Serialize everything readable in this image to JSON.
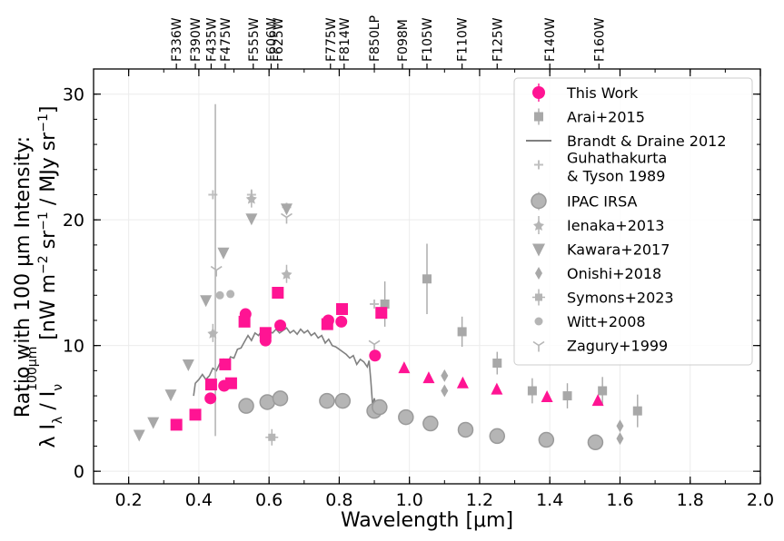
{
  "chart_data": {
    "type": "scatter",
    "xlabel": "Wavelength [μm]",
    "ylabel_line1": "Ratio with 100 μm Intensity:",
    "ylabel_line2": "λ I_λ / I_ν^100μm [nW m^−2 sr^−1 / MJy sr^−1]",
    "xlim": [
      0.1,
      2.0
    ],
    "ylim": [
      -1,
      32
    ],
    "xticks": [
      "0.2",
      "0.4",
      "0.6",
      "0.8",
      "1.0",
      "1.2",
      "1.4",
      "1.6",
      "1.8",
      "2.0"
    ],
    "yticks": [
      "0",
      "10",
      "20",
      "30"
    ],
    "grid": true,
    "legend_position": "top-right",
    "top_axis_filters": [
      {
        "name": "F336W",
        "x": 0.336
      },
      {
        "name": "F390W",
        "x": 0.39
      },
      {
        "name": "F435W",
        "x": 0.435
      },
      {
        "name": "F475W",
        "x": 0.475
      },
      {
        "name": "F555W",
        "x": 0.555
      },
      {
        "name": "F606W",
        "x": 0.606
      },
      {
        "name": "F625W",
        "x": 0.625
      },
      {
        "name": "F775W",
        "x": 0.775
      },
      {
        "name": "F814W",
        "x": 0.814
      },
      {
        "name": "F850LP",
        "x": 0.9
      },
      {
        "name": "F098M",
        "x": 0.98
      },
      {
        "name": "F105W",
        "x": 1.05
      },
      {
        "name": "F110W",
        "x": 1.15
      },
      {
        "name": "F125W",
        "x": 1.25
      },
      {
        "name": "F140W",
        "x": 1.4
      },
      {
        "name": "F160W",
        "x": 1.54
      }
    ],
    "series": [
      {
        "name": "This Work",
        "color": "#ff1493",
        "marker": "circle",
        "legend_marker": "circle",
        "points": [
          {
            "x": 0.433,
            "y": 5.8,
            "m": "circle"
          },
          {
            "x": 0.472,
            "y": 6.8,
            "m": "circle"
          },
          {
            "x": 0.533,
            "y": 12.5,
            "m": "circle"
          },
          {
            "x": 0.59,
            "y": 10.4,
            "m": "circle"
          },
          {
            "x": 0.632,
            "y": 11.6,
            "m": "circle"
          },
          {
            "x": 0.769,
            "y": 12.0,
            "m": "circle"
          },
          {
            "x": 0.806,
            "y": 11.9,
            "m": "circle"
          },
          {
            "x": 0.902,
            "y": 9.2,
            "m": "circle"
          },
          {
            "x": 0.336,
            "y": 3.7,
            "m": "square"
          },
          {
            "x": 0.39,
            "y": 4.5,
            "m": "square"
          },
          {
            "x": 0.435,
            "y": 6.9,
            "m": "square"
          },
          {
            "x": 0.475,
            "y": 8.5,
            "m": "square"
          },
          {
            "x": 0.492,
            "y": 7.0,
            "m": "square"
          },
          {
            "x": 0.53,
            "y": 11.9,
            "m": "square"
          },
          {
            "x": 0.59,
            "y": 11.0,
            "m": "square"
          },
          {
            "x": 0.625,
            "y": 14.2,
            "m": "square"
          },
          {
            "x": 0.766,
            "y": 11.7,
            "m": "square"
          },
          {
            "x": 0.808,
            "y": 12.9,
            "m": "square"
          },
          {
            "x": 0.92,
            "y": 12.6,
            "m": "square"
          },
          {
            "x": 0.985,
            "y": 8.2,
            "m": "triangle"
          },
          {
            "x": 1.055,
            "y": 7.4,
            "m": "triangle"
          },
          {
            "x": 1.152,
            "y": 7.0,
            "m": "triangle"
          },
          {
            "x": 1.249,
            "y": 6.5,
            "m": "triangle"
          },
          {
            "x": 1.392,
            "y": 5.9,
            "m": "triangle"
          },
          {
            "x": 1.537,
            "y": 5.6,
            "m": "triangle"
          }
        ]
      },
      {
        "name": "Arai+2015",
        "color": "#a8a8a8",
        "marker": "square",
        "points": [
          {
            "x": 0.93,
            "y": 13.3,
            "err": 1.8
          },
          {
            "x": 1.05,
            "y": 15.3,
            "err": 2.8
          },
          {
            "x": 1.15,
            "y": 11.1,
            "err": 1.2
          },
          {
            "x": 1.25,
            "y": 8.6,
            "err": 0.9
          },
          {
            "x": 1.35,
            "y": 6.4,
            "err": 1.0
          },
          {
            "x": 1.45,
            "y": 6.0,
            "err": 1.0
          },
          {
            "x": 1.55,
            "y": 6.4,
            "err": 1.1
          },
          {
            "x": 1.65,
            "y": 4.8,
            "err": 1.3
          }
        ]
      },
      {
        "name": "Brandt & Draine 2012",
        "color": "#808080",
        "marker": "line",
        "line": [
          [
            0.385,
            6.0
          ],
          [
            0.39,
            7.0
          ],
          [
            0.4,
            7.3
          ],
          [
            0.41,
            7.7
          ],
          [
            0.42,
            7.3
          ],
          [
            0.43,
            7.6
          ],
          [
            0.44,
            8.2
          ],
          [
            0.45,
            8.0
          ],
          [
            0.46,
            8.6
          ],
          [
            0.47,
            8.9
          ],
          [
            0.48,
            8.4
          ],
          [
            0.49,
            9.1
          ],
          [
            0.5,
            9.0
          ],
          [
            0.51,
            9.7
          ],
          [
            0.52,
            9.8
          ],
          [
            0.53,
            10.3
          ],
          [
            0.54,
            10.8
          ],
          [
            0.55,
            10.4
          ],
          [
            0.56,
            11.0
          ],
          [
            0.57,
            10.8
          ],
          [
            0.58,
            11.2
          ],
          [
            0.59,
            10.8
          ],
          [
            0.6,
            11.1
          ],
          [
            0.61,
            11.0
          ],
          [
            0.62,
            11.3
          ],
          [
            0.63,
            11.0
          ],
          [
            0.64,
            11.2
          ],
          [
            0.65,
            11.4
          ],
          [
            0.66,
            11.0
          ],
          [
            0.67,
            11.2
          ],
          [
            0.68,
            10.9
          ],
          [
            0.69,
            11.3
          ],
          [
            0.7,
            11.0
          ],
          [
            0.71,
            11.2
          ],
          [
            0.72,
            10.8
          ],
          [
            0.73,
            11.0
          ],
          [
            0.74,
            10.6
          ],
          [
            0.75,
            10.8
          ],
          [
            0.76,
            10.2
          ],
          [
            0.77,
            10.5
          ],
          [
            0.78,
            10.0
          ],
          [
            0.79,
            9.9
          ],
          [
            0.8,
            9.7
          ],
          [
            0.81,
            9.5
          ],
          [
            0.82,
            9.3
          ],
          [
            0.83,
            9.0
          ],
          [
            0.84,
            9.2
          ],
          [
            0.85,
            8.5
          ],
          [
            0.86,
            8.9
          ],
          [
            0.87,
            8.7
          ],
          [
            0.88,
            8.3
          ],
          [
            0.885,
            8.8
          ],
          [
            0.89,
            7.2
          ],
          [
            0.895,
            5.3
          ],
          [
            0.9,
            5.8
          ],
          [
            0.905,
            5.1
          ],
          [
            0.91,
            5.2
          ]
        ]
      },
      {
        "name": "Guhathakurta & Tyson 1989",
        "name_line1": "Guhathakurta",
        "name_line2": "& Tyson 1989",
        "color": "#c0c0c0",
        "marker": "plus",
        "points": [
          {
            "x": 0.44,
            "y": 22.0
          },
          {
            "x": 0.55,
            "y": 22.0
          },
          {
            "x": 0.65,
            "y": 21.0
          },
          {
            "x": 0.9,
            "y": 13.3
          }
        ]
      },
      {
        "name": "IPAC IRSA",
        "color": "#b5b5b5",
        "marker": "big-circle",
        "points": [
          {
            "x": 0.535,
            "y": 5.2
          },
          {
            "x": 0.595,
            "y": 5.5
          },
          {
            "x": 0.632,
            "y": 5.8
          },
          {
            "x": 0.765,
            "y": 5.6
          },
          {
            "x": 0.81,
            "y": 5.6
          },
          {
            "x": 0.9,
            "y": 4.8
          },
          {
            "x": 0.915,
            "y": 5.1
          },
          {
            "x": 0.99,
            "y": 4.3
          },
          {
            "x": 1.06,
            "y": 3.8
          },
          {
            "x": 1.16,
            "y": 3.3
          },
          {
            "x": 1.25,
            "y": 2.8
          },
          {
            "x": 1.39,
            "y": 2.5
          },
          {
            "x": 1.53,
            "y": 2.3
          }
        ]
      },
      {
        "name": "Ienaka+2013",
        "color": "#b5b5b5",
        "marker": "star",
        "points": [
          {
            "x": 0.44,
            "y": 11.0
          },
          {
            "x": 0.55,
            "y": 21.7
          },
          {
            "x": 0.65,
            "y": 15.7
          }
        ]
      },
      {
        "name": "Kawara+2017",
        "color": "#a8a8a8",
        "marker": "down-triangle",
        "points": [
          {
            "x": 0.23,
            "y": 2.9
          },
          {
            "x": 0.27,
            "y": 3.9
          },
          {
            "x": 0.32,
            "y": 6.1
          },
          {
            "x": 0.37,
            "y": 8.5
          },
          {
            "x": 0.42,
            "y": 13.6
          },
          {
            "x": 0.47,
            "y": 17.4
          },
          {
            "x": 0.55,
            "y": 20.1
          },
          {
            "x": 0.65,
            "y": 20.9
          }
        ]
      },
      {
        "name": "Onishi+2018",
        "color": "#a8a8a8",
        "marker": "diamond",
        "points": [
          {
            "x": 1.1,
            "y": 7.6
          },
          {
            "x": 1.1,
            "y": 6.4
          },
          {
            "x": 1.6,
            "y": 3.6
          },
          {
            "x": 1.6,
            "y": 2.6
          }
        ]
      },
      {
        "name": "Symons+2023",
        "color": "#b5b5b5",
        "marker": "cross-square",
        "points": [
          {
            "x": 0.608,
            "y": 2.7
          }
        ]
      },
      {
        "name": "Witt+2008",
        "color": "#b5b5b5",
        "marker": "small-circle",
        "points": [
          {
            "x": 0.46,
            "y": 14.0
          },
          {
            "x": 0.49,
            "y": 14.1
          }
        ]
      },
      {
        "name": "Zagury+1999",
        "color": "#b5b5b5",
        "marker": "tri-down",
        "points": [
          {
            "x": 0.45,
            "y": 16.0
          },
          {
            "x": 0.65,
            "y": 20.2
          },
          {
            "x": 0.9,
            "y": 10.1
          }
        ],
        "big_error": {
          "x": 0.447,
          "y_low": 2.8,
          "y_high": 29.2
        }
      }
    ]
  }
}
